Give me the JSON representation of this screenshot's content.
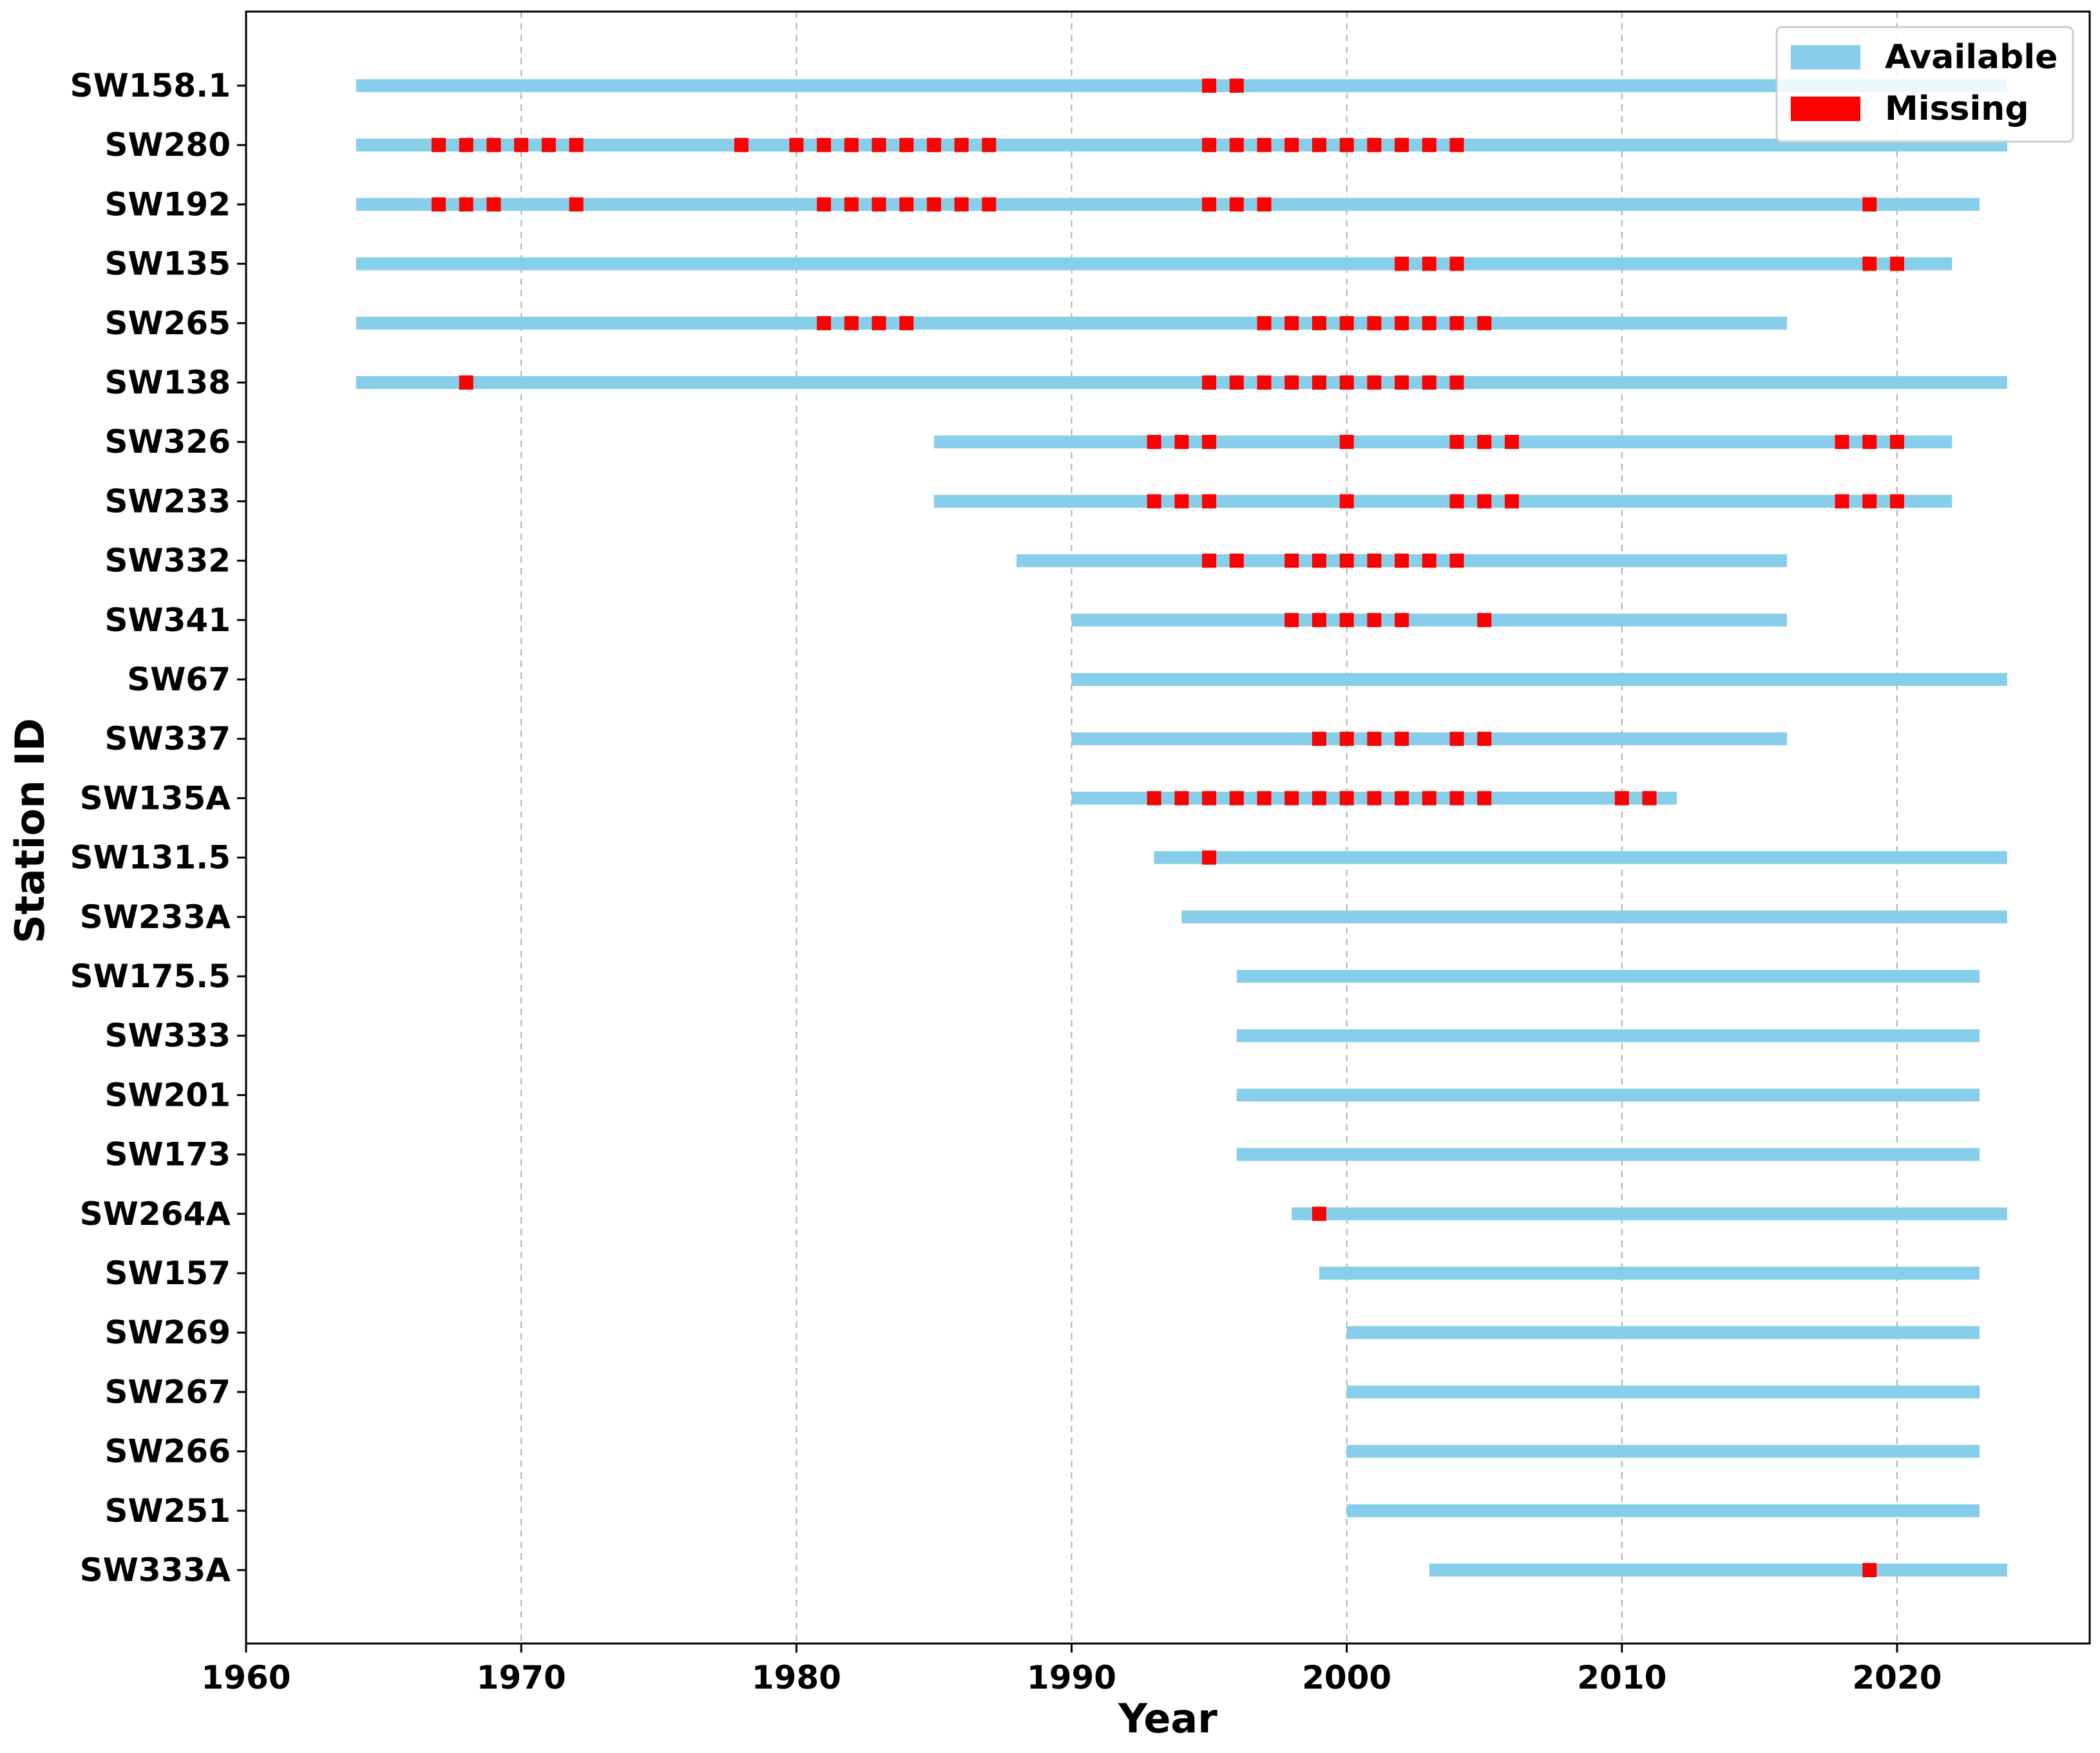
{
  "chart_data": {
    "type": "timeline",
    "xlabel": "Year",
    "ylabel": "Station ID",
    "xlim": [
      1960,
      2027
    ],
    "xticks": [
      1960,
      1970,
      1980,
      1990,
      2000,
      2010,
      2020
    ],
    "grid": "vertical dashed",
    "legend": {
      "position": "top-right",
      "entries": [
        {
          "label": "Available",
          "color": "#87CEEB"
        },
        {
          "label": "Missing",
          "color": "#FF0000"
        }
      ]
    },
    "stations": [
      {
        "id": "SW158.1",
        "start": 1964,
        "end": 2024,
        "missing": [
          1995,
          1996
        ]
      },
      {
        "id": "SW280",
        "start": 1964,
        "end": 2024,
        "missing": [
          1967,
          1968,
          1969,
          1970,
          1971,
          1972,
          1978,
          1980,
          1981,
          1982,
          1983,
          1984,
          1985,
          1986,
          1987,
          1995,
          1996,
          1997,
          1998,
          1999,
          2000,
          2001,
          2002,
          2003,
          2004
        ]
      },
      {
        "id": "SW192",
        "start": 1964,
        "end": 2023,
        "missing": [
          1967,
          1968,
          1969,
          1972,
          1981,
          1982,
          1983,
          1984,
          1985,
          1986,
          1987,
          1995,
          1996,
          1997,
          2019
        ]
      },
      {
        "id": "SW135",
        "start": 1964,
        "end": 2022,
        "missing": [
          2002,
          2003,
          2004,
          2019,
          2020
        ]
      },
      {
        "id": "SW265",
        "start": 1964,
        "end": 2016,
        "missing": [
          1981,
          1982,
          1983,
          1984,
          1997,
          1998,
          1999,
          2000,
          2001,
          2002,
          2003,
          2004,
          2005
        ]
      },
      {
        "id": "SW138",
        "start": 1964,
        "end": 2024,
        "missing": [
          1968,
          1995,
          1996,
          1997,
          1998,
          1999,
          2000,
          2001,
          2002,
          2003,
          2004
        ]
      },
      {
        "id": "SW326",
        "start": 1985,
        "end": 2022,
        "missing": [
          1993,
          1994,
          1995,
          2000,
          2004,
          2005,
          2006,
          2018,
          2019,
          2020
        ]
      },
      {
        "id": "SW233",
        "start": 1985,
        "end": 2022,
        "missing": [
          1993,
          1994,
          1995,
          2000,
          2004,
          2005,
          2006,
          2018,
          2019,
          2020
        ]
      },
      {
        "id": "SW332",
        "start": 1988,
        "end": 2016,
        "missing": [
          1995,
          1996,
          1998,
          1999,
          2000,
          2001,
          2002,
          2003,
          2004
        ]
      },
      {
        "id": "SW341",
        "start": 1990,
        "end": 2016,
        "missing": [
          1998,
          1999,
          2000,
          2001,
          2002,
          2005
        ]
      },
      {
        "id": "SW67",
        "start": 1990,
        "end": 2024,
        "missing": []
      },
      {
        "id": "SW337",
        "start": 1990,
        "end": 2016,
        "missing": [
          1999,
          2000,
          2001,
          2002,
          2004,
          2005
        ]
      },
      {
        "id": "SW135A",
        "start": 1990,
        "end": 2012,
        "missing": [
          1993,
          1994,
          1995,
          1996,
          1997,
          1998,
          1999,
          2000,
          2001,
          2002,
          2003,
          2004,
          2005,
          2010,
          2011
        ]
      },
      {
        "id": "SW131.5",
        "start": 1993,
        "end": 2024,
        "missing": [
          1995
        ]
      },
      {
        "id": "SW233A",
        "start": 1994,
        "end": 2024,
        "missing": []
      },
      {
        "id": "SW175.5",
        "start": 1996,
        "end": 2023,
        "missing": []
      },
      {
        "id": "SW333",
        "start": 1996,
        "end": 2023,
        "missing": []
      },
      {
        "id": "SW201",
        "start": 1996,
        "end": 2023,
        "missing": []
      },
      {
        "id": "SW173",
        "start": 1996,
        "end": 2023,
        "missing": []
      },
      {
        "id": "SW264A",
        "start": 1998,
        "end": 2024,
        "missing": [
          1999
        ]
      },
      {
        "id": "SW157",
        "start": 1999,
        "end": 2023,
        "missing": []
      },
      {
        "id": "SW269",
        "start": 2000,
        "end": 2023,
        "missing": []
      },
      {
        "id": "SW267",
        "start": 2000,
        "end": 2023,
        "missing": []
      },
      {
        "id": "SW266",
        "start": 2000,
        "end": 2023,
        "missing": []
      },
      {
        "id": "SW251",
        "start": 2000,
        "end": 2023,
        "missing": []
      },
      {
        "id": "SW333A",
        "start": 2003,
        "end": 2024,
        "missing": [
          2019
        ]
      }
    ]
  }
}
